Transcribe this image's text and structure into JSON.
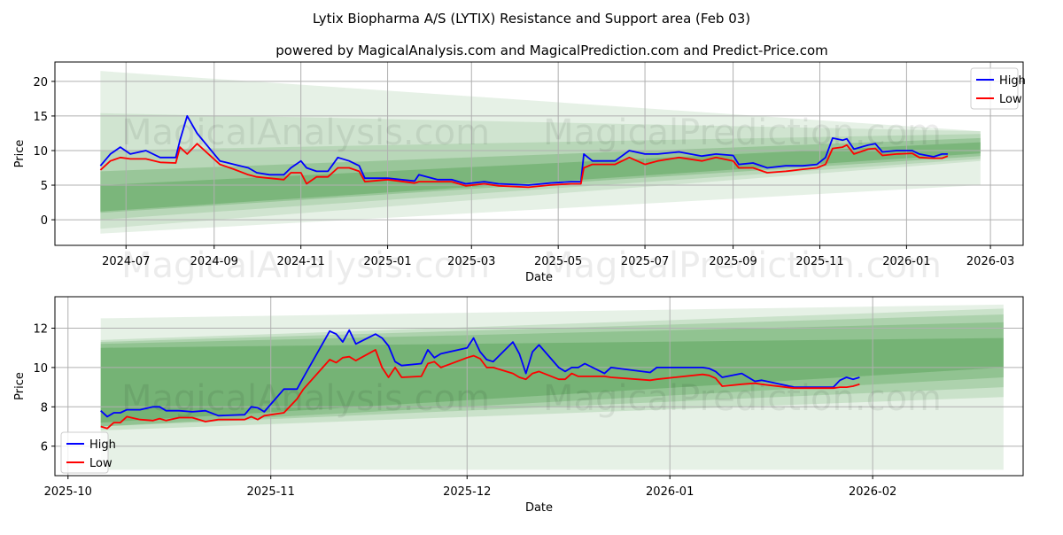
{
  "title": "Lytix Biopharma A/S (LYTIX) Resistance and Support area (Feb 03)",
  "subtitle": "powered by MagicalAnalysis.com and MagicalPrediction.com and Predict-Price.com",
  "watermarks": [
    "MagicalAnalysis.com",
    "MagicalPrediction.com"
  ],
  "colors": {
    "high": "#0000ff",
    "low": "#ff0000",
    "band": "#2e8b2e",
    "grid": "#b0b0b0"
  },
  "chart_data": [
    {
      "type": "line",
      "xlabel": "Date",
      "ylabel": "Price",
      "xlim": [
        "2024-05-12",
        "2026-03-24"
      ],
      "ylim": [
        -3.7,
        22.8
      ],
      "yticks": [
        0,
        5,
        10,
        15,
        20
      ],
      "xticks": [
        "2024-07",
        "2024-09",
        "2024-11",
        "2025-01",
        "2025-03",
        "2025-05",
        "2025-07",
        "2025-09",
        "2025-11",
        "2026-01",
        "2026-03"
      ],
      "grid": true,
      "legend": {
        "position": "top-right",
        "entries": [
          "High",
          "Low"
        ]
      },
      "bands": [
        {
          "start": "2024-06-13",
          "end": "2026-02-22",
          "upper": [
            21.5,
            12.8
          ],
          "lower": [
            -2.0,
            5.0
          ],
          "opacity": 0.12
        },
        {
          "start": "2024-06-13",
          "end": "2026-02-22",
          "upper": [
            15.4,
            12.8
          ],
          "lower": [
            -1.3,
            8.5
          ],
          "opacity": 0.12
        },
        {
          "start": "2024-06-13",
          "end": "2026-02-22",
          "upper": [
            10.0,
            12.4
          ],
          "lower": [
            0.0,
            8.8
          ],
          "opacity": 0.15
        },
        {
          "start": "2024-06-13",
          "end": "2026-02-22",
          "upper": [
            7.0,
            11.8
          ],
          "lower": [
            1.0,
            9.2
          ],
          "opacity": 0.22
        },
        {
          "start": "2024-06-13",
          "end": "2026-02-22",
          "upper": [
            5.0,
            11.2
          ],
          "lower": [
            1.2,
            9.6
          ],
          "opacity": 0.28
        }
      ],
      "x": [
        "2024-06-13",
        "2024-06-20",
        "2024-06-27",
        "2024-07-04",
        "2024-07-15",
        "2024-07-25",
        "2024-08-05",
        "2024-08-08",
        "2024-08-13",
        "2024-08-20",
        "2024-08-28",
        "2024-09-05",
        "2024-09-15",
        "2024-09-25",
        "2024-10-01",
        "2024-10-10",
        "2024-10-20",
        "2024-10-25",
        "2024-11-01",
        "2024-11-05",
        "2024-11-12",
        "2024-11-20",
        "2024-11-27",
        "2024-12-05",
        "2024-12-12",
        "2024-12-16",
        "2025-01-01",
        "2025-01-20",
        "2025-01-23",
        "2025-02-05",
        "2025-02-15",
        "2025-02-25",
        "2025-03-10",
        "2025-03-20",
        "2025-04-10",
        "2025-04-25",
        "2025-05-10",
        "2025-05-17",
        "2025-05-19",
        "2025-05-25",
        "2025-06-10",
        "2025-06-20",
        "2025-07-01",
        "2025-07-10",
        "2025-07-25",
        "2025-08-10",
        "2025-08-20",
        "2025-09-01",
        "2025-09-05",
        "2025-09-15",
        "2025-09-25",
        "2025-10-08",
        "2025-10-20",
        "2025-10-30",
        "2025-11-05",
        "2025-11-10",
        "2025-11-17",
        "2025-11-20",
        "2025-11-25",
        "2025-12-05",
        "2025-12-10",
        "2025-12-15",
        "2025-12-25",
        "2026-01-05",
        "2026-01-10",
        "2026-01-20",
        "2026-01-26",
        "2026-01-30"
      ],
      "series": [
        {
          "name": "High",
          "values": [
            7.8,
            9.5,
            10.5,
            9.5,
            10.0,
            9.0,
            9.0,
            11.5,
            15.0,
            12.5,
            10.5,
            8.5,
            8.0,
            7.5,
            6.8,
            6.5,
            6.5,
            7.5,
            8.5,
            7.5,
            7.0,
            7.0,
            9.0,
            8.5,
            7.8,
            6.0,
            6.0,
            5.6,
            6.5,
            5.8,
            5.8,
            5.2,
            5.5,
            5.2,
            5.0,
            5.3,
            5.5,
            5.5,
            9.5,
            8.5,
            8.5,
            10.0,
            9.5,
            9.5,
            9.8,
            9.2,
            9.5,
            9.3,
            8.0,
            8.2,
            7.5,
            7.8,
            7.8,
            8.0,
            9.0,
            11.8,
            11.5,
            11.7,
            10.2,
            10.8,
            11.0,
            9.8,
            10.0,
            10.0,
            9.5,
            9.1,
            9.5,
            9.5
          ]
        },
        {
          "name": "Low",
          "values": [
            7.2,
            8.5,
            9.0,
            8.8,
            8.8,
            8.3,
            8.2,
            10.5,
            9.5,
            11.0,
            9.5,
            8.0,
            7.3,
            6.5,
            6.2,
            6.0,
            5.8,
            6.8,
            6.8,
            5.2,
            6.2,
            6.2,
            7.5,
            7.5,
            7.0,
            5.5,
            5.8,
            5.3,
            5.5,
            5.5,
            5.5,
            4.9,
            5.2,
            4.9,
            4.7,
            5.0,
            5.2,
            5.2,
            7.5,
            8.0,
            8.0,
            9.0,
            8.0,
            8.5,
            9.0,
            8.5,
            9.0,
            8.5,
            7.5,
            7.5,
            6.8,
            7.0,
            7.3,
            7.5,
            8.0,
            10.3,
            10.5,
            10.8,
            9.5,
            10.2,
            10.3,
            9.3,
            9.5,
            9.6,
            9.0,
            8.9,
            8.9,
            9.2
          ]
        }
      ]
    },
    {
      "type": "line",
      "xlabel": "Date",
      "ylabel": "Price",
      "xlim": [
        "2025-09-29",
        "2026-02-24"
      ],
      "ylim": [
        4.5,
        13.6
      ],
      "yticks": [
        6,
        8,
        10,
        12
      ],
      "xticks": [
        "2025-10",
        "2025-11",
        "2025-12",
        "2026-01",
        "2026-02"
      ],
      "grid": true,
      "legend": {
        "position": "bottom-left",
        "entries": [
          "High",
          "Low"
        ]
      },
      "bands": [
        {
          "start": "2025-10-06",
          "end": "2026-02-21",
          "upper": [
            12.5,
            13.2
          ],
          "lower": [
            4.8,
            4.8
          ],
          "opacity": 0.12
        },
        {
          "start": "2025-10-06",
          "end": "2026-02-21",
          "upper": [
            11.4,
            13.0
          ],
          "lower": [
            6.8,
            8.5
          ],
          "opacity": 0.15
        },
        {
          "start": "2025-10-06",
          "end": "2026-02-21",
          "upper": [
            11.3,
            12.7
          ],
          "lower": [
            7.0,
            9.0
          ],
          "opacity": 0.18
        },
        {
          "start": "2025-10-06",
          "end": "2026-02-21",
          "upper": [
            11.2,
            12.3
          ],
          "lower": [
            7.0,
            9.5
          ],
          "opacity": 0.22
        },
        {
          "start": "2025-10-06",
          "end": "2026-02-21",
          "upper": [
            11.0,
            11.5
          ],
          "lower": [
            7.2,
            10.0
          ],
          "opacity": 0.28
        }
      ],
      "x": [
        "2025-10-06",
        "2025-10-07",
        "2025-10-08",
        "2025-10-09",
        "2025-10-10",
        "2025-10-12",
        "2025-10-14",
        "2025-10-15",
        "2025-10-16",
        "2025-10-18",
        "2025-10-20",
        "2025-10-22",
        "2025-10-24",
        "2025-10-28",
        "2025-10-29",
        "2025-10-30",
        "2025-10-31",
        "2025-11-03",
        "2025-11-05",
        "2025-11-06",
        "2025-11-10",
        "2025-11-11",
        "2025-11-12",
        "2025-11-13",
        "2025-11-14",
        "2025-11-17",
        "2025-11-18",
        "2025-11-19",
        "2025-11-20",
        "2025-11-21",
        "2025-11-24",
        "2025-11-25",
        "2025-11-26",
        "2025-11-27",
        "2025-12-01",
        "2025-12-02",
        "2025-12-03",
        "2025-12-04",
        "2025-12-05",
        "2025-12-08",
        "2025-12-09",
        "2025-12-10",
        "2025-12-11",
        "2025-12-12",
        "2025-12-15",
        "2025-12-16",
        "2025-12-17",
        "2025-12-18",
        "2025-12-19",
        "2025-12-22",
        "2025-12-23",
        "2025-12-29",
        "2025-12-30",
        "2026-01-06",
        "2026-01-07",
        "2026-01-08",
        "2026-01-09",
        "2026-01-12",
        "2026-01-14",
        "2026-01-15",
        "2026-01-20",
        "2026-01-26",
        "2026-01-27",
        "2026-01-28",
        "2026-01-29",
        "2026-01-30"
      ],
      "series": [
        {
          "name": "High",
          "values": [
            7.8,
            7.5,
            7.7,
            7.7,
            7.85,
            7.85,
            8.0,
            8.0,
            7.8,
            7.8,
            7.75,
            7.8,
            7.55,
            7.6,
            8.0,
            7.95,
            7.75,
            8.9,
            8.9,
            9.5,
            11.85,
            11.7,
            11.3,
            11.9,
            11.2,
            11.7,
            11.5,
            11.1,
            10.3,
            10.1,
            10.2,
            10.9,
            10.5,
            10.7,
            11.0,
            11.5,
            10.8,
            10.4,
            10.3,
            11.3,
            10.7,
            9.7,
            10.8,
            11.15,
            10.0,
            9.8,
            10.0,
            10.0,
            10.2,
            9.7,
            10.0,
            9.75,
            10.0,
            10.0,
            9.95,
            9.8,
            9.5,
            9.7,
            9.3,
            9.35,
            9.0,
            9.0,
            9.35,
            9.5,
            9.4,
            9.5
          ]
        },
        {
          "name": "Low",
          "values": [
            7.0,
            6.9,
            7.2,
            7.2,
            7.5,
            7.35,
            7.3,
            7.4,
            7.3,
            7.45,
            7.45,
            7.25,
            7.35,
            7.35,
            7.5,
            7.35,
            7.55,
            7.7,
            8.4,
            8.9,
            10.4,
            10.25,
            10.5,
            10.55,
            10.35,
            10.9,
            10.0,
            9.5,
            10.0,
            9.5,
            9.55,
            10.2,
            10.3,
            10.0,
            10.5,
            10.6,
            10.45,
            10.0,
            10.0,
            9.7,
            9.5,
            9.4,
            9.7,
            9.8,
            9.4,
            9.4,
            9.7,
            9.55,
            9.55,
            9.55,
            9.5,
            9.35,
            9.4,
            9.65,
            9.6,
            9.45,
            9.05,
            9.15,
            9.2,
            9.15,
            8.95,
            8.95,
            9.0,
            9.0,
            9.05,
            9.15
          ]
        }
      ]
    }
  ]
}
